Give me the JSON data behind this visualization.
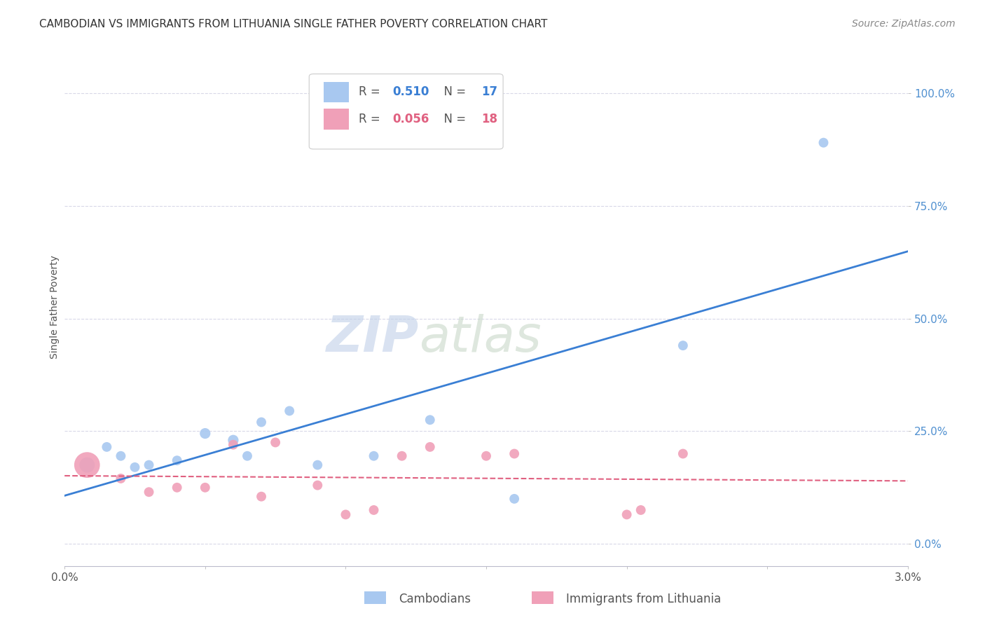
{
  "title": "CAMBODIAN VS IMMIGRANTS FROM LITHUANIA SINGLE FATHER POVERTY CORRELATION CHART",
  "source": "Source: ZipAtlas.com",
  "ylabel": "Single Father Poverty",
  "legend_label1": "Cambodians",
  "legend_label2": "Immigrants from Lithuania",
  "R1": "0.510",
  "N1": "17",
  "R2": "0.056",
  "N2": "18",
  "color1": "#a8c8f0",
  "color2": "#f0a0b8",
  "trendline_color1": "#3a7fd4",
  "trendline_color2": "#e06080",
  "background_color": "#ffffff",
  "grid_color": "#d8d8e8",
  "watermark_zip_color": "#c0d0e8",
  "watermark_atlas_color": "#c8d8c8",
  "ytick_color": "#5090d0",
  "ytick_labels": [
    "0.0%",
    "25.0%",
    "50.0%",
    "75.0%",
    "100.0%"
  ],
  "ytick_values": [
    0.0,
    0.25,
    0.5,
    0.75,
    1.0
  ],
  "xlim": [
    0.0,
    0.03
  ],
  "ylim": [
    -0.05,
    1.1
  ],
  "cambodian_x": [
    0.0008,
    0.0015,
    0.002,
    0.0025,
    0.003,
    0.004,
    0.005,
    0.006,
    0.0065,
    0.007,
    0.008,
    0.009,
    0.011,
    0.013,
    0.016,
    0.022,
    0.027
  ],
  "cambodian_y": [
    0.175,
    0.215,
    0.195,
    0.17,
    0.175,
    0.185,
    0.245,
    0.23,
    0.195,
    0.27,
    0.295,
    0.175,
    0.195,
    0.275,
    0.1,
    0.44,
    0.89
  ],
  "cambodian_size": [
    250,
    100,
    100,
    100,
    100,
    100,
    120,
    120,
    100,
    100,
    100,
    100,
    100,
    100,
    100,
    100,
    100
  ],
  "lithuania_x": [
    0.0008,
    0.002,
    0.003,
    0.004,
    0.005,
    0.006,
    0.007,
    0.0075,
    0.009,
    0.01,
    0.011,
    0.012,
    0.013,
    0.015,
    0.016,
    0.02,
    0.0205,
    0.022
  ],
  "lithuania_y": [
    0.175,
    0.145,
    0.115,
    0.125,
    0.125,
    0.22,
    0.105,
    0.225,
    0.13,
    0.065,
    0.075,
    0.195,
    0.215,
    0.195,
    0.2,
    0.065,
    0.075,
    0.2
  ],
  "lithuania_size": [
    700,
    100,
    100,
    100,
    100,
    100,
    100,
    100,
    100,
    100,
    100,
    100,
    100,
    100,
    100,
    100,
    100,
    100
  ],
  "title_fontsize": 11,
  "source_fontsize": 10,
  "axis_label_fontsize": 10,
  "tick_fontsize": 11,
  "legend_fontsize": 12,
  "watermark_fontsize": 52
}
